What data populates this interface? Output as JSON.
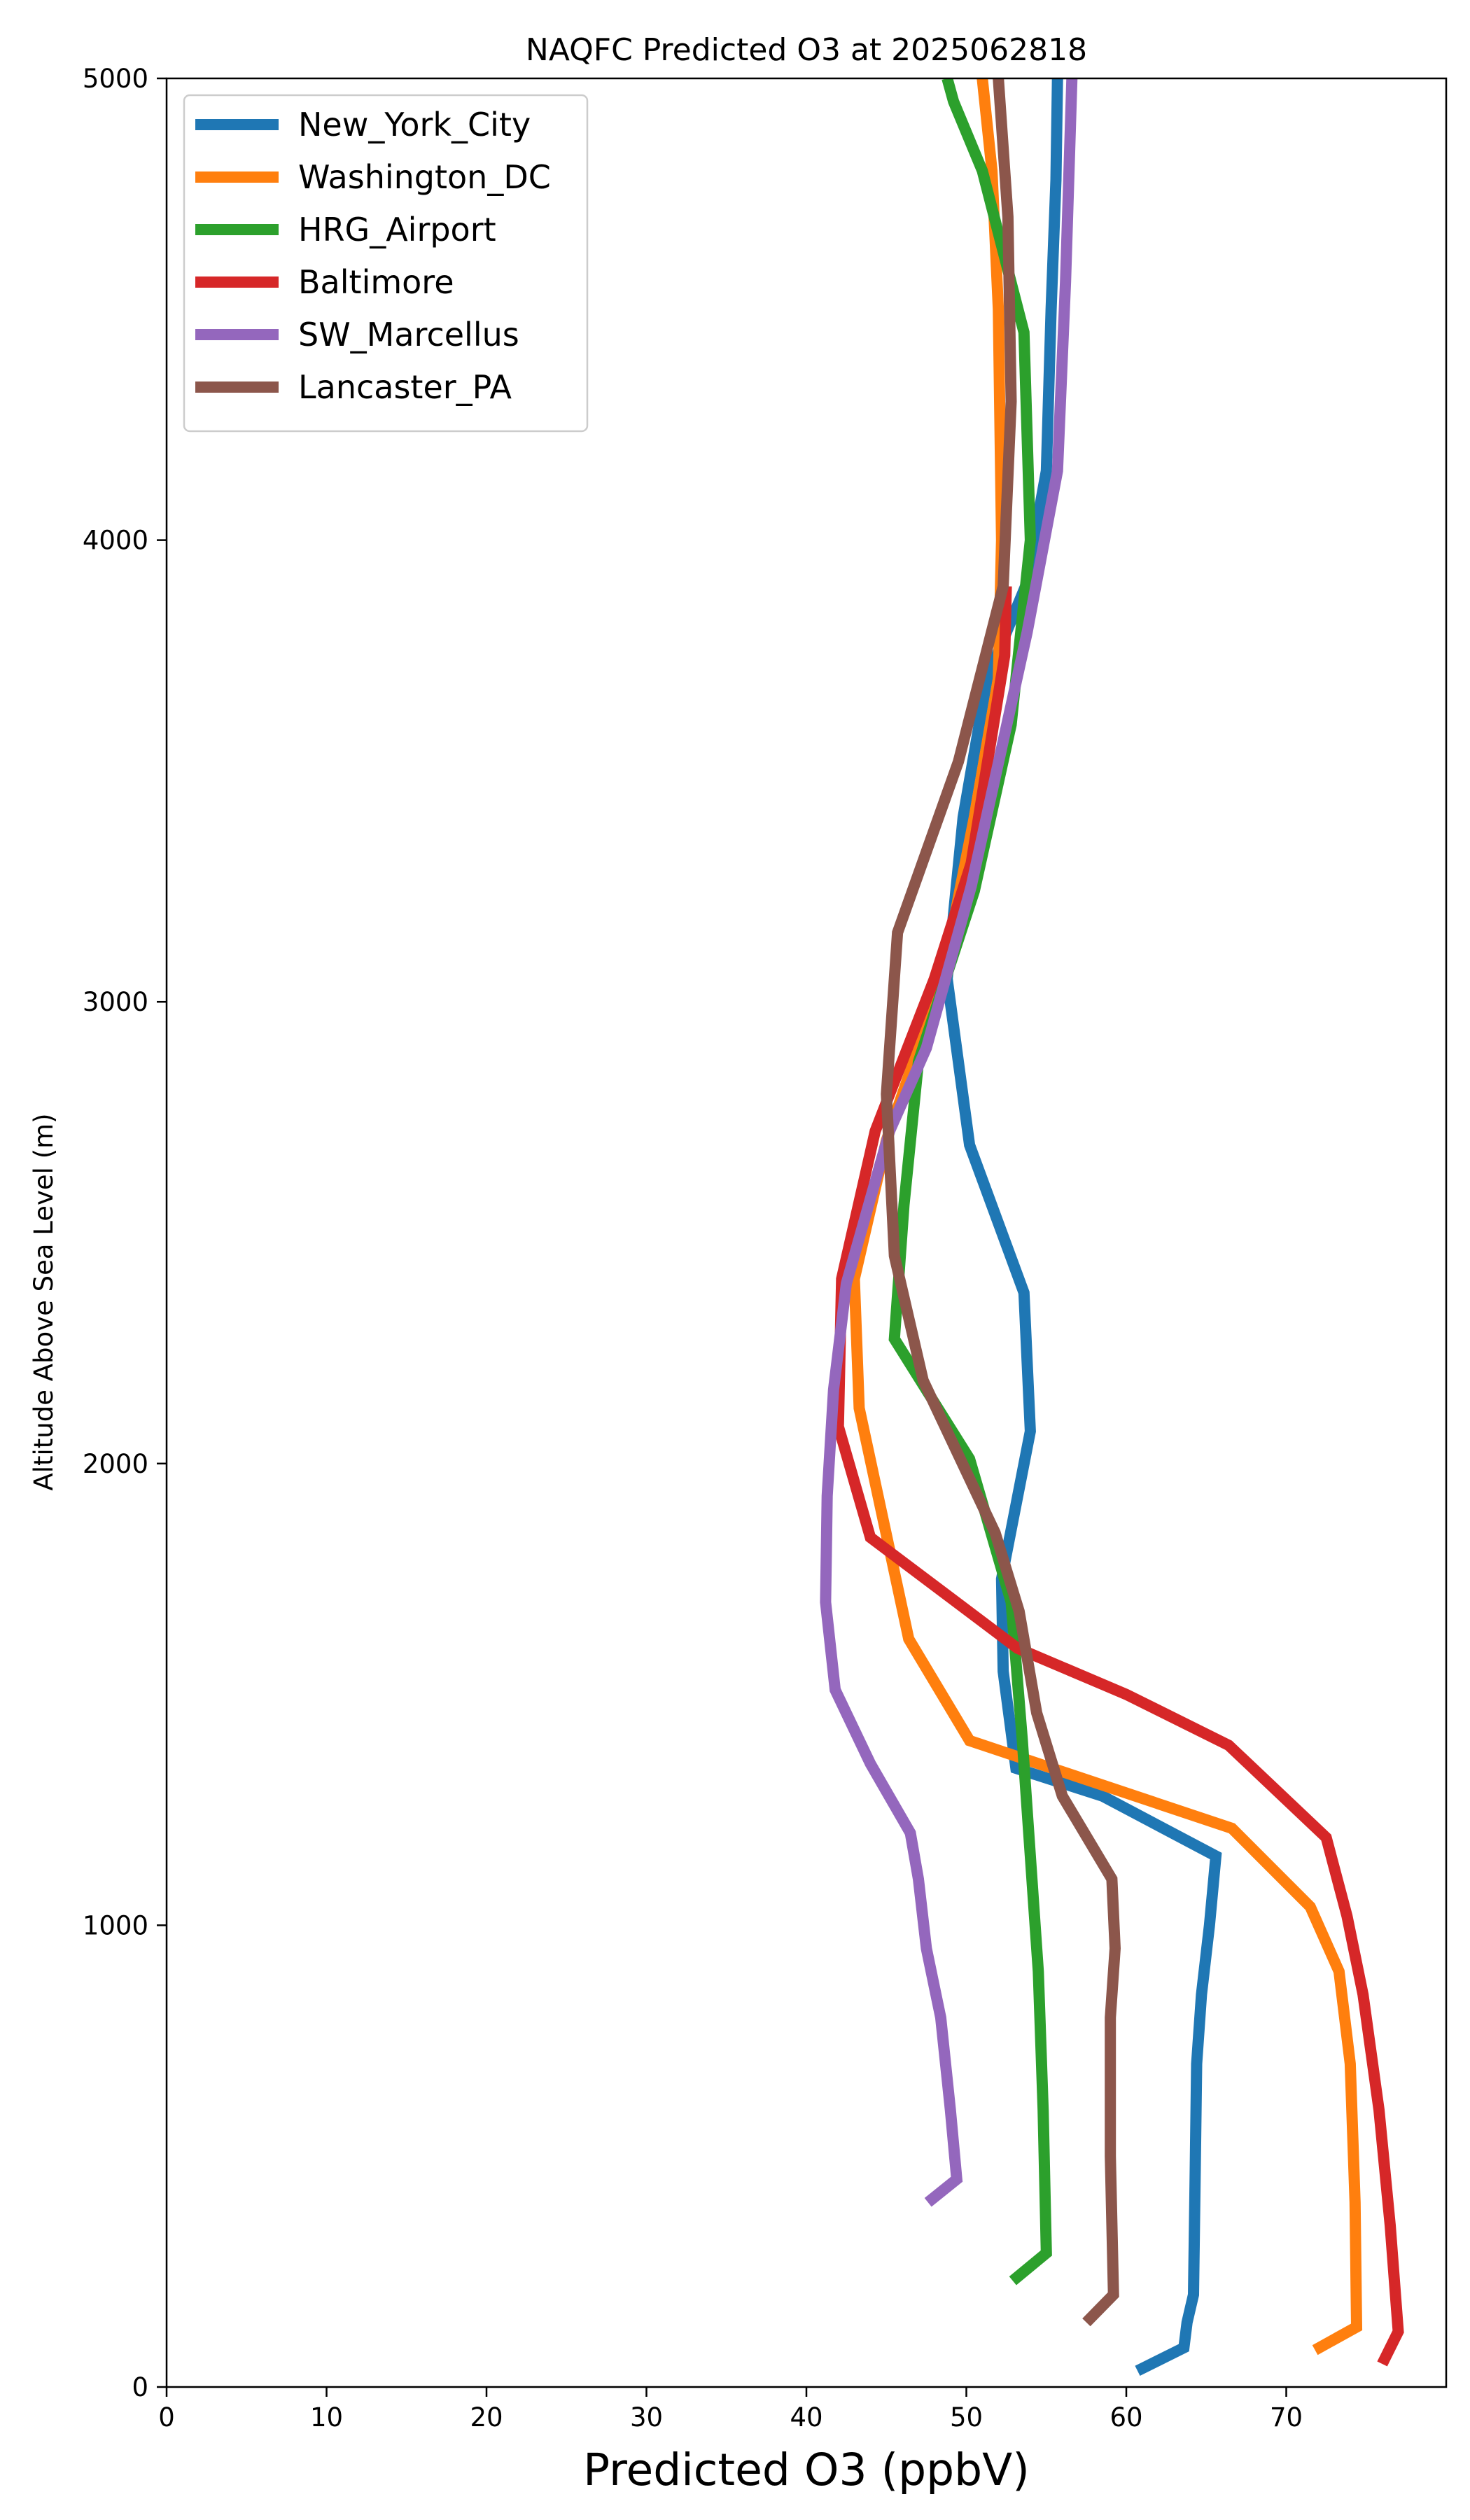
{
  "chart_data": {
    "type": "line",
    "title": "NAQFC Predicted O3 at 2025062818",
    "xlabel": "Predicted O3 (ppbV)",
    "ylabel": "Altitude Above Sea Level (m)",
    "xlim": [
      0,
      80
    ],
    "ylim": [
      0,
      5000
    ],
    "xticks": [
      "0",
      "10",
      "20",
      "30",
      "40",
      "50",
      "60",
      "70"
    ],
    "yticks": [
      "0",
      "1000",
      "2000",
      "3000",
      "4000",
      "5000"
    ],
    "grid": false,
    "legend_position": "upper-left",
    "series": [
      {
        "name": "New_York_City",
        "color": "#1f77b4",
        "points": [
          [
            60.7,
            35
          ],
          [
            63.6,
            85
          ],
          [
            63.8,
            140
          ],
          [
            64.2,
            200
          ],
          [
            64.3,
            450
          ],
          [
            64.4,
            700
          ],
          [
            64.7,
            850
          ],
          [
            65.2,
            1000
          ],
          [
            65.6,
            1150
          ],
          [
            58.5,
            1280
          ],
          [
            53.1,
            1340
          ],
          [
            52.3,
            1550
          ],
          [
            52.2,
            1750
          ],
          [
            54.0,
            2070
          ],
          [
            53.6,
            2370
          ],
          [
            50.2,
            2690
          ],
          [
            48.8,
            3050
          ],
          [
            49.8,
            3400
          ],
          [
            51.3,
            3700
          ],
          [
            53.7,
            3900
          ],
          [
            55.0,
            4150
          ],
          [
            55.3,
            4500
          ],
          [
            55.6,
            4780
          ],
          [
            55.7,
            5000
          ]
        ]
      },
      {
        "name": "Washington_DC",
        "color": "#ff7f0e",
        "points": [
          [
            71.8,
            80
          ],
          [
            74.4,
            130
          ],
          [
            74.3,
            400
          ],
          [
            74.0,
            700
          ],
          [
            73.3,
            900
          ],
          [
            71.5,
            1040
          ],
          [
            66.6,
            1210
          ],
          [
            50.2,
            1400
          ],
          [
            46.4,
            1620
          ],
          [
            43.3,
            2120
          ],
          [
            43.0,
            2400
          ],
          [
            45.0,
            2700
          ],
          [
            48.5,
            3050
          ],
          [
            50.5,
            3400
          ],
          [
            52.0,
            3700
          ],
          [
            52.2,
            4000
          ],
          [
            52.0,
            4500
          ],
          [
            51.6,
            4800
          ],
          [
            51.0,
            5000
          ]
        ]
      },
      {
        "name": "HRG_Airport",
        "color": "#2ca02c",
        "points": [
          [
            52.9,
            230
          ],
          [
            55.0,
            290
          ],
          [
            54.8,
            600
          ],
          [
            54.5,
            900
          ],
          [
            54.0,
            1150
          ],
          [
            53.5,
            1400
          ],
          [
            52.8,
            1700
          ],
          [
            50.2,
            2010
          ],
          [
            45.5,
            2270
          ],
          [
            46.1,
            2560
          ],
          [
            47.0,
            2870
          ],
          [
            50.5,
            3240
          ],
          [
            52.8,
            3600
          ],
          [
            54.0,
            4000
          ],
          [
            53.6,
            4450
          ],
          [
            51.0,
            4800
          ],
          [
            49.2,
            4950
          ],
          [
            48.8,
            5000
          ]
        ]
      },
      {
        "name": "Baltimore",
        "color": "#d62728",
        "points": [
          [
            76.0,
            50
          ],
          [
            77.0,
            120
          ],
          [
            76.5,
            350
          ],
          [
            75.8,
            600
          ],
          [
            74.8,
            850
          ],
          [
            73.8,
            1020
          ],
          [
            72.5,
            1190
          ],
          [
            66.4,
            1390
          ],
          [
            60.0,
            1500
          ],
          [
            53.2,
            1600
          ],
          [
            44.0,
            1840
          ],
          [
            42.0,
            2080
          ],
          [
            42.2,
            2400
          ],
          [
            44.3,
            2720
          ],
          [
            48.0,
            3050
          ],
          [
            50.3,
            3300
          ],
          [
            52.4,
            3750
          ],
          [
            52.5,
            3900
          ]
        ]
      },
      {
        "name": "SW_Marcellus",
        "color": "#9467bd",
        "points": [
          [
            47.6,
            400
          ],
          [
            49.4,
            450
          ],
          [
            49.0,
            600
          ],
          [
            48.4,
            800
          ],
          [
            47.5,
            950
          ],
          [
            47.0,
            1100
          ],
          [
            46.5,
            1200
          ],
          [
            44.0,
            1350
          ],
          [
            41.8,
            1510
          ],
          [
            41.2,
            1700
          ],
          [
            41.3,
            1930
          ],
          [
            41.7,
            2160
          ],
          [
            42.5,
            2390
          ],
          [
            45.2,
            2720
          ],
          [
            47.5,
            2900
          ],
          [
            50.3,
            3250
          ],
          [
            53.8,
            3800
          ],
          [
            55.7,
            4150
          ],
          [
            56.2,
            4560
          ],
          [
            56.6,
            5000
          ]
        ]
      },
      {
        "name": "Lancaster_PA",
        "color": "#8c564b",
        "points": [
          [
            57.5,
            140
          ],
          [
            59.2,
            200
          ],
          [
            59.0,
            500
          ],
          [
            59.0,
            800
          ],
          [
            59.3,
            950
          ],
          [
            59.1,
            1100
          ],
          [
            56.0,
            1280
          ],
          [
            54.4,
            1460
          ],
          [
            53.3,
            1680
          ],
          [
            51.8,
            1850
          ],
          [
            47.3,
            2180
          ],
          [
            45.5,
            2450
          ],
          [
            45.0,
            2800
          ],
          [
            45.7,
            3150
          ],
          [
            49.5,
            3520
          ],
          [
            52.3,
            3900
          ],
          [
            52.8,
            4300
          ],
          [
            52.6,
            4700
          ],
          [
            52.0,
            5000
          ]
        ]
      }
    ]
  }
}
